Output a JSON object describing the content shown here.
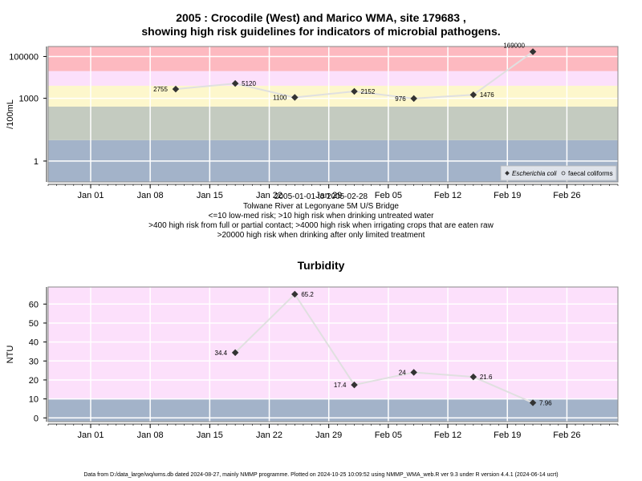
{
  "colors": {
    "grid": "#ffffff",
    "line": "#e0e0e0",
    "point": "#333333",
    "frame": "#888888"
  },
  "chart_data": [
    {
      "type": "line",
      "title": "2005 : Crocodile (West) and Marico WMA, site 179683 ,",
      "subtitle": "showing high risk guidelines for indicators of microbial pathogens.",
      "ylabel": "/100mL",
      "yscale": "log",
      "ylim": [
        0.1,
        300000
      ],
      "xlim": [
        "2004-12-27",
        "2005-03-04"
      ],
      "x_ticks": [
        "Jan 01",
        "Jan 08",
        "Jan 15",
        "Jan 22",
        "Jan 29",
        "Feb 05",
        "Feb 12",
        "Feb 19",
        "Feb 26"
      ],
      "y_ticks": [
        "1",
        "1000",
        "100000"
      ],
      "bands": [
        {
          "from": 0.1,
          "to": 10,
          "color": "#a3b3c9"
        },
        {
          "from": 10,
          "to": 400,
          "color": "#c4cbc0"
        },
        {
          "from": 400,
          "to": 4000,
          "color": "#fdf7cc"
        },
        {
          "from": 4000,
          "to": 20000,
          "color": "#fce0fb"
        },
        {
          "from": 20000,
          "to": 300000,
          "color": "#fdb9c0"
        }
      ],
      "series": [
        {
          "name": "Escherichia coli",
          "x": [
            "2005-01-11",
            "2005-01-18",
            "2005-01-25",
            "2005-02-01",
            "2005-02-08",
            "2005-02-15",
            "2005-02-22"
          ],
          "values": [
            2755,
            5120,
            1100,
            2152,
            976,
            1476,
            169000
          ],
          "labels": [
            "2755",
            "5120",
            "1100",
            "2152",
            "976",
            "1476",
            "169000"
          ]
        }
      ],
      "legend": {
        "position": "bottom-right",
        "entries": [
          "Escherichia coli",
          "faecal coliforms"
        ]
      },
      "notes": [
        "2005-01-01 to 2005-02-28",
        "Tolwane River at Legonyane 5M U/S Bridge",
        "<=10 low-med risk; >10 high risk when drinking untreated water",
        ">400 high risk from full or partial contact; >4000 high risk when irrigating crops that are eaten raw",
        ">20000 high risk when drinking after only limited treatment"
      ]
    },
    {
      "type": "line",
      "title": "Turbidity",
      "ylabel": "NTU",
      "ylim": [
        -2,
        69
      ],
      "xlim": [
        "2004-12-27",
        "2005-03-04"
      ],
      "x_ticks": [
        "Jan 01",
        "Jan 08",
        "Jan 15",
        "Jan 22",
        "Jan 29",
        "Feb 05",
        "Feb 12",
        "Feb 19",
        "Feb 26"
      ],
      "y_ticks": [
        "0",
        "10",
        "20",
        "30",
        "40",
        "50",
        "60"
      ],
      "bands": [
        {
          "from": -2,
          "to": 10,
          "color": "#a3b3c9"
        },
        {
          "from": 10,
          "to": 69,
          "color": "#fce0fb"
        }
      ],
      "series": [
        {
          "name": "",
          "x": [
            "2005-01-18",
            "2005-01-25",
            "2005-02-01",
            "2005-02-08",
            "2005-02-15",
            "2005-02-22"
          ],
          "values": [
            34.4,
            65.2,
            17.4,
            24,
            21.6,
            7.96
          ],
          "labels": [
            "34.4",
            "65.2",
            "17.4",
            "24",
            "21.6",
            "7.96"
          ]
        }
      ]
    }
  ],
  "footer": "Data from D:/data_large/wq/wms.db dated 2024-08-27, mainly NMMP programme. Plotted on 2024-10-25 10:09:52 using NMMP_WMA_web.R ver 9.3 under R version 4.4.1 (2024-06-14 ucrt)"
}
